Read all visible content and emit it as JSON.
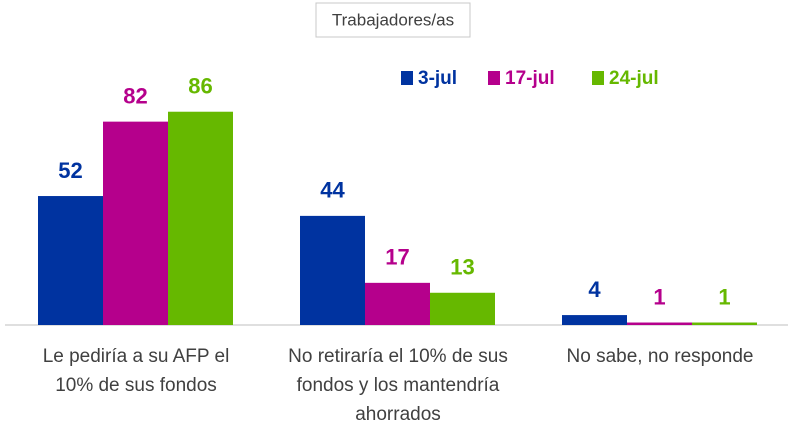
{
  "chart_data": {
    "type": "bar",
    "title": "Trabajadores/as",
    "categories": [
      "Le pediría a su AFP el 10% de sus fondos",
      "No retiraría el 10% de sus fondos y los mantendría ahorrados",
      "No sabe, no responde"
    ],
    "series": [
      {
        "name": "3-jul",
        "color": "#0033a0",
        "values": [
          52,
          44,
          4
        ]
      },
      {
        "name": "17-jul",
        "color": "#b5008c",
        "values": [
          82,
          17,
          1
        ]
      },
      {
        "name": "24-jul",
        "color": "#66b800",
        "values": [
          86,
          13,
          1
        ]
      }
    ],
    "legend": "top-right"
  }
}
